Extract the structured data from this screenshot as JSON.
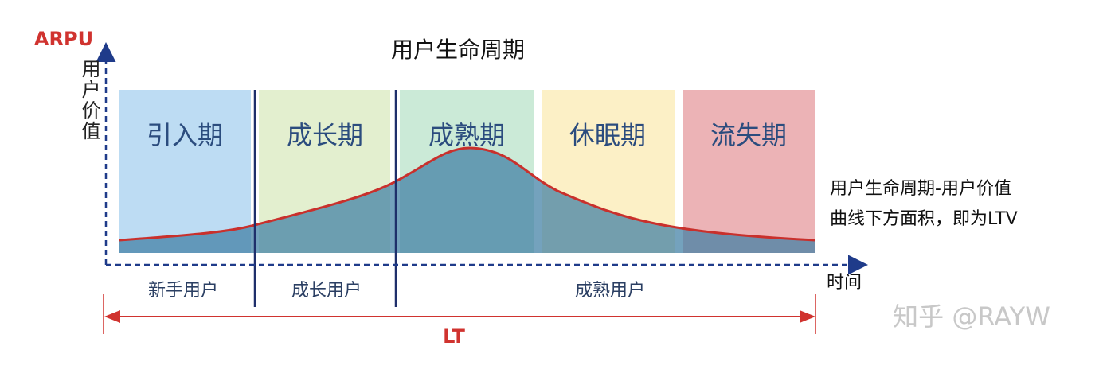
{
  "axis": {
    "y_label": "ARPU",
    "y_sublabel": "用户价值",
    "x_label": "时间"
  },
  "title": "用户生命周期",
  "stages": [
    "引入期",
    "成长期",
    "成熟期",
    "休眠期",
    "流失期"
  ],
  "user_groups": [
    "新手用户",
    "成长用户",
    "成熟用户"
  ],
  "note": [
    "用户生命周期-用户价值",
    "曲线下方面积，即为LTV"
  ],
  "span_label": "LT",
  "watermark": "知乎 @RAYW"
}
